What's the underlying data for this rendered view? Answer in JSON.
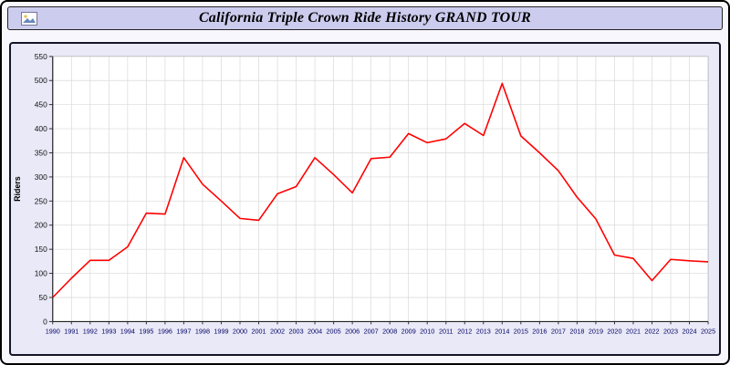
{
  "title": "California Triple Crown Ride History GRAND TOUR",
  "theme": {
    "page_bg": "#f7f7fd",
    "title_bar_bg": "#ccccee",
    "panel_bg": "#e9e9f7",
    "plot_bg": "#ffffff",
    "line_color": "#ff0000",
    "grid_color": "#d9d9d9",
    "axis_color": "#333333",
    "xtick_color": "#000066",
    "ytick_color": "#111111",
    "border_color": "#000000"
  },
  "icons": [
    {
      "name": "image-icon",
      "meaning": "small picture glyph left of title"
    }
  ],
  "chart_data": {
    "type": "line",
    "title": "California Triple Crown Ride History GRAND TOUR",
    "xlabel": "",
    "ylabel": "Riders",
    "ylim": [
      0,
      550
    ],
    "ytick_step": 50,
    "grid": true,
    "legend_position": "none",
    "x": [
      "1990",
      "1991",
      "1992",
      "1993",
      "1994",
      "1995",
      "1996",
      "1997",
      "1998",
      "1999",
      "2000",
      "2001",
      "2002",
      "2003",
      "2004",
      "2005",
      "2006",
      "2007",
      "2008",
      "2009",
      "2010",
      "2011",
      "2012",
      "2013",
      "2014",
      "2015",
      "2016",
      "2017",
      "2018",
      "2019",
      "2020",
      "2021",
      "2022",
      "2023",
      "2024",
      "2025"
    ],
    "series": [
      {
        "name": "Riders",
        "values": [
          50,
          90,
          127,
          127,
          155,
          225,
          223,
          340,
          285,
          250,
          214,
          210,
          265,
          280,
          340,
          305,
          267,
          338,
          341,
          390,
          371,
          379,
          411,
          386,
          494,
          385,
          350,
          313,
          258,
          213,
          138,
          131,
          85,
          129,
          126,
          124
        ]
      }
    ]
  }
}
